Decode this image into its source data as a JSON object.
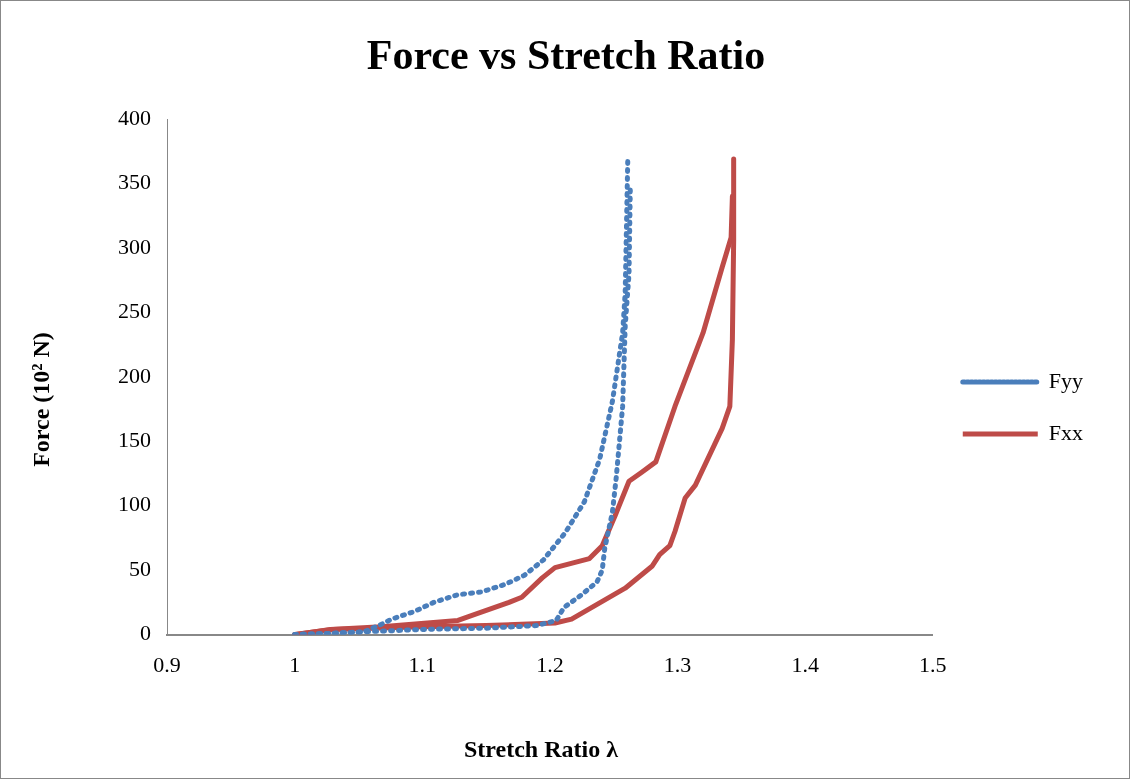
{
  "chart_data": {
    "type": "line",
    "title": "Force vs Stretch Ratio",
    "xlabel": "Stretch Ratio   λ",
    "ylabel": "Force (10² N)",
    "xlim": [
      0.9,
      1.5
    ],
    "xticks": [
      0.9,
      1,
      1.1,
      1.2,
      1.3,
      1.4,
      1.5
    ],
    "ylim": [
      0,
      400
    ],
    "yticks": [
      0,
      50,
      100,
      150,
      200,
      250,
      300,
      350,
      400
    ],
    "grid": false,
    "legend": "right",
    "marker": "none",
    "series": [
      {
        "name": "Fyy",
        "color": "#4a7ebb",
        "line_style": "dotted",
        "x": [
          1,
          1.03,
          1.05,
          1.1,
          1.15,
          1.19,
          1.205,
          1.211,
          1.225,
          1.237,
          1.241,
          1.243,
          1.249,
          1.252,
          1.257,
          1.259,
          1.262,
          1.263
        ],
        "values": [
          0,
          1,
          2,
          4,
          5,
          7,
          11,
          21,
          31,
          41,
          50,
          67,
          95,
          122,
          177,
          239,
          280,
          345
        ]
      },
      {
        "color": "#4a7ebb",
        "line_style": "dotted",
        "x": [
          1.261,
          1.259,
          1.257,
          1.249,
          1.239,
          1.227,
          1.212,
          1.195,
          1.18,
          1.165,
          1.146,
          1.128,
          1.109,
          1.094,
          1.076,
          1.068,
          1.054,
          1.028,
          1
        ],
        "values": [
          367,
          265,
          234,
          181,
          136,
          103,
          79,
          58,
          46,
          39,
          33,
          31,
          25,
          18,
          12,
          8,
          2,
          1,
          0
        ]
      },
      {
        "name": "Fxx",
        "color": "#be4b48",
        "line_style": "solid",
        "x": [
          1,
          1.03,
          1.1,
          1.15,
          1.204,
          1.217,
          1.259,
          1.28,
          1.286,
          1.294,
          1.298,
          1.306,
          1.314,
          1.335,
          1.341,
          1.343,
          1.344,
          1.344
        ],
        "values": [
          0,
          4,
          6,
          7,
          9,
          12,
          36,
          53,
          62,
          69,
          80,
          106,
          116,
          160,
          177,
          229,
          306,
          369
        ]
      },
      {
        "color": "#be4b48",
        "line_style": "solid",
        "x": [
          1.343,
          1.342,
          1.335,
          1.32,
          1.298,
          1.283,
          1.272,
          1.262,
          1.251,
          1.241,
          1.231,
          1.204,
          1.194,
          1.178,
          1.168,
          1.139,
          1.128,
          1.068,
          1.028,
          1
        ],
        "values": [
          340,
          308,
          285,
          234,
          177,
          134,
          126,
          119,
          92,
          69,
          59,
          52,
          44,
          29,
          25,
          15,
          11,
          6,
          4,
          0
        ]
      }
    ]
  }
}
